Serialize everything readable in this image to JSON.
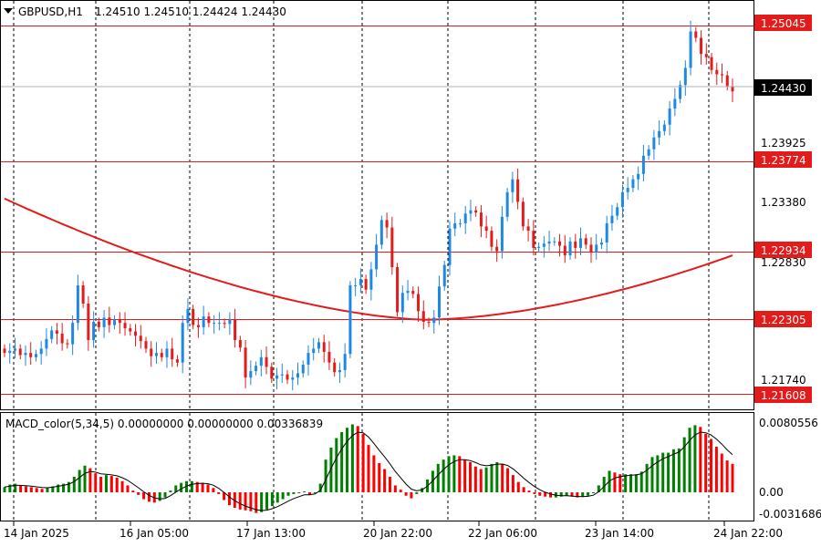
{
  "header": {
    "symbol": "GBPUSD,H1",
    "ohlc": "1.24510 1.24510 1.24424 1.24430"
  },
  "indicator": {
    "label": "MACD_color(5,34,5) 0.00000000 0.00000000 0.00336839",
    "axis_labels": [
      "0.0080556",
      "0.00",
      "-0.0031686"
    ]
  },
  "price_axis_labels": [
    "1.23925",
    "1.23380",
    "1.22830",
    "1.21740"
  ],
  "time_labels": [
    "14 Jan 2025",
    "16 Jan 05:00",
    "17 Jan 13:00",
    "20 Jan 22:00",
    "22 Jan 06:00",
    "23 Jan 14:00",
    "24 Jan 22:00"
  ],
  "levels": [
    "1.25045",
    "1.23774",
    "1.22934",
    "1.22305",
    "1.21608"
  ],
  "current_price": "1.24430",
  "colors": {
    "bull": "#1e88e5",
    "bear": "#e41b1b",
    "level_line": "#e41b1b",
    "ma": "#e41b1b",
    "hist_up": "#008000",
    "hist_down": "#ff0000",
    "signal": "#000000",
    "current_label_bg": "#000000"
  },
  "chart_data": [
    {
      "type": "candlestick",
      "title": "GBPUSD,H1",
      "x_range": [
        "14 Jan 2025",
        "24 Jan 22:00"
      ],
      "ylim": [
        1.2156,
        1.2515
      ],
      "candles_approx_close": [
        1.2199,
        1.2201,
        1.2203,
        1.2197,
        1.2199,
        1.2195,
        1.2198,
        1.2203,
        1.2212,
        1.222,
        1.2217,
        1.2208,
        1.2207,
        1.2227,
        1.2262,
        1.2245,
        1.2211,
        1.2228,
        1.2223,
        1.2232,
        1.2225,
        1.223,
        1.2227,
        1.2222,
        1.2219,
        1.2215,
        1.221,
        1.2203,
        1.2196,
        1.2199,
        1.2195,
        1.2203,
        1.2193,
        1.219,
        1.2227,
        1.224,
        1.2225,
        1.2223,
        1.2233,
        1.2227,
        1.2227,
        1.2227,
        1.2226,
        1.223,
        1.2211,
        1.2204,
        1.2176,
        1.2182,
        1.2187,
        1.2195,
        1.2186,
        1.2175,
        1.2178,
        1.2179,
        1.2174,
        1.2176,
        1.218,
        1.2188,
        1.2199,
        1.2203,
        1.2209,
        1.22,
        1.219,
        1.2181,
        1.2183,
        1.2198,
        1.2262,
        1.2262,
        1.2268,
        1.2258,
        1.2277,
        1.23,
        1.2323,
        1.2316,
        1.2279,
        1.2237,
        1.2255,
        1.2257,
        1.2254,
        1.2238,
        1.2228,
        1.2227,
        1.2232,
        1.2261,
        1.2281,
        1.2315,
        1.232,
        1.232,
        1.2329,
        1.2332,
        1.233,
        1.2317,
        1.2313,
        1.2298,
        1.2294,
        1.2326,
        1.2349,
        1.2361,
        1.234,
        1.2317,
        1.2313,
        1.2297,
        1.2298,
        1.2301,
        1.2303,
        1.2303,
        1.2299,
        1.229,
        1.2303,
        1.2297,
        1.2306,
        1.23,
        1.2293,
        1.23,
        1.2302,
        1.232,
        1.2327,
        1.2335,
        1.2349,
        1.2353,
        1.2361,
        1.2366,
        1.2383,
        1.2389,
        1.24,
        1.2406,
        1.2412,
        1.2427,
        1.2436,
        1.2449,
        1.2465,
        1.2499,
        1.2493,
        1.2478,
        1.2475,
        1.2463,
        1.2459,
        1.2458,
        1.2448,
        1.2443
      ],
      "moving_average": {
        "start": 1.2343,
        "min": 1.223,
        "end": 1.229
      },
      "levels": [
        1.25045,
        1.23774,
        1.22934,
        1.22305,
        1.21608
      ],
      "current_price": 1.2443,
      "y_ticks": [
        1.23925,
        1.2338,
        1.2283,
        1.2174
      ]
    },
    {
      "type": "bar",
      "title": "MACD_color(5,34,5)",
      "ylim": [
        -0.0031686,
        0.0080556
      ],
      "histogram_approx": [
        0.0006,
        0.0009,
        0.001,
        0.0008,
        0.0007,
        0.0006,
        0.0005,
        0.0004,
        0.0005,
        0.0007,
        0.0009,
        0.001,
        0.0012,
        0.0018,
        0.0026,
        0.0031,
        0.0028,
        0.0022,
        0.0018,
        0.002,
        0.0019,
        0.0017,
        0.0013,
        0.0008,
        0.0002,
        -0.0003,
        -0.0008,
        -0.0011,
        -0.0012,
        -0.001,
        -0.0006,
        0.0002,
        0.0008,
        0.0011,
        0.0013,
        0.0013,
        0.0012,
        0.0011,
        0.0009,
        0.0005,
        -0.0002,
        -0.0009,
        -0.0015,
        -0.0018,
        -0.002,
        -0.0021,
        -0.0022,
        -0.0024,
        -0.0023,
        -0.002,
        -0.0016,
        -0.0012,
        -0.0008,
        -0.0004,
        -0.0002,
        -0.0001,
        0.0001,
        -0.0003,
        0.0,
        0.001,
        0.0038,
        0.0052,
        0.0063,
        0.007,
        0.0075,
        0.0079,
        0.0077,
        0.0068,
        0.0055,
        0.0043,
        0.0034,
        0.0027,
        0.0018,
        0.0008,
        0.0003,
        -0.0004,
        -0.0007,
        -0.0002,
        0.0005,
        0.0015,
        0.0025,
        0.0033,
        0.0038,
        0.0042,
        0.0043,
        0.0042,
        0.0038,
        0.0035,
        0.003,
        0.0027,
        0.0029,
        0.0033,
        0.0035,
        0.0033,
        0.0028,
        0.002,
        0.0012,
        0.0006,
        0.0002,
        -0.0002,
        -0.0004,
        -0.0005,
        -0.0006,
        -0.0006,
        -0.0005,
        -0.0004,
        -0.0005,
        -0.0006,
        -0.0005,
        -0.0004,
        -0.0001,
        0.0008,
        0.0018,
        0.0025,
        0.0023,
        0.0021,
        0.0021,
        0.0021,
        0.0021,
        0.0024,
        0.0033,
        0.0041,
        0.0043,
        0.0046,
        0.0046,
        0.005,
        0.0051,
        0.0064,
        0.0075,
        0.0078,
        0.0076,
        0.0068,
        0.0062,
        0.0053,
        0.0045,
        0.0037,
        0.0033
      ],
      "y_ticks": [
        0.0080556,
        0.0,
        -0.0031686
      ]
    }
  ]
}
